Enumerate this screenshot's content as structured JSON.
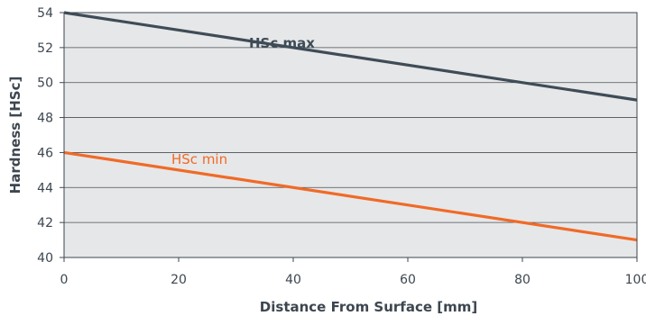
{
  "chart_data": {
    "type": "line",
    "title": "",
    "xlabel": "Distance From Surface [mm]",
    "ylabel": "Hardness [HSc]",
    "xlim": [
      0,
      100
    ],
    "ylim": [
      40,
      54
    ],
    "xticks": [
      "0",
      "20",
      "40",
      "60",
      "80",
      "100"
    ],
    "yticks": [
      "54",
      "52",
      "50",
      "48",
      "46",
      "44",
      "42",
      "40"
    ],
    "grid": true,
    "plot_background": "#e6e7e8",
    "series": [
      {
        "name": "HSc max",
        "color": "#3f4c57",
        "x": [
          0,
          100
        ],
        "y": [
          54,
          49
        ]
      },
      {
        "name": "HSc min",
        "color": "#f06a27",
        "x": [
          0,
          100
        ],
        "y": [
          46,
          41
        ]
      }
    ]
  }
}
